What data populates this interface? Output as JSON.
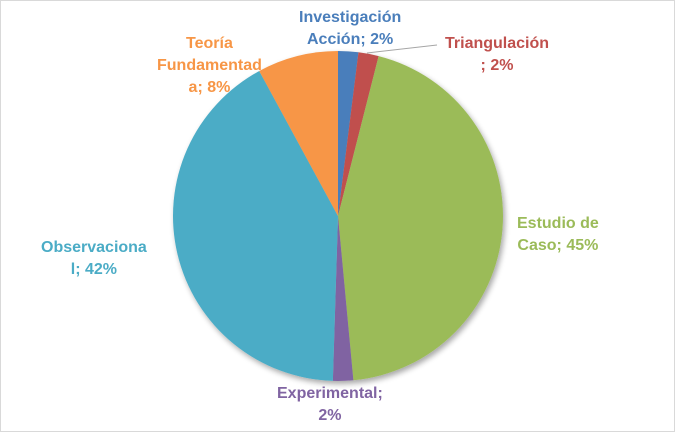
{
  "chart_data": {
    "type": "pie",
    "title": "",
    "categories": [
      "Investigación Acción",
      "Triangulación",
      "Estudio de Caso",
      "Experimental",
      "Observacional",
      "Teoría Fundamentada"
    ],
    "values": [
      2,
      2,
      45,
      2,
      42,
      8
    ],
    "colors": [
      "#4a7ebb",
      "#c0504d",
      "#9bbb59",
      "#8064a2",
      "#4bacc6",
      "#f79646"
    ],
    "label_format": "{category}; {percent}%",
    "legend": "none"
  },
  "labels": {
    "investigacion_1": "Investigación",
    "investigacion_2": "Acción; 2%",
    "triangulacion_1": "Triangulación",
    "triangulacion_2": "; 2%",
    "estudio_1": "Estudio de",
    "estudio_2": "Caso; 45%",
    "experimental_1": "Experimental;",
    "experimental_2": "2%",
    "observacional_1": "Observaciona",
    "observacional_2": "l; 42%",
    "teoria_1": "Teoría",
    "teoria_2": "Fundamentad",
    "teoria_3": "a; 8%"
  }
}
